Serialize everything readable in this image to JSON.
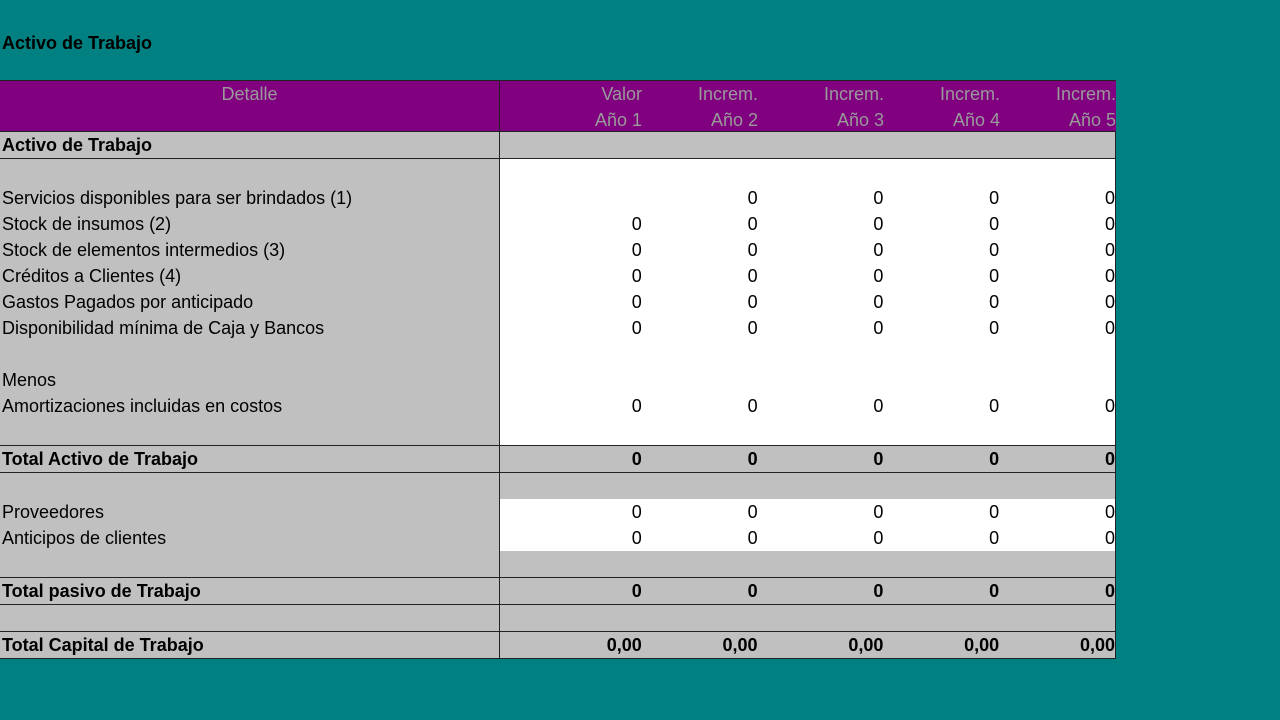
{
  "title": "Activo de Trabajo",
  "header": {
    "detalle": "Detalle",
    "cols": [
      {
        "l1": "Valor",
        "l2": "Año 1"
      },
      {
        "l1": "Increm.",
        "l2": "Año 2"
      },
      {
        "l1": "Increm.",
        "l2": "Año 3"
      },
      {
        "l1": "Increm.",
        "l2": "Año 4"
      },
      {
        "l1": "Increm.",
        "l2": "Año 5"
      }
    ]
  },
  "rows": [
    {
      "label": "Activo de Trabajo",
      "vals": [
        "",
        "",
        "",
        "",
        ""
      ]
    },
    {
      "label": "",
      "vals": [
        "",
        "",
        "",
        "",
        ""
      ]
    },
    {
      "label": "Servicios disponibles para ser brindados (1)",
      "vals": [
        "",
        "0",
        "0",
        "0",
        "0"
      ]
    },
    {
      "label": "Stock de insumos  (2)",
      "vals": [
        "0",
        "0",
        "0",
        "0",
        "0"
      ]
    },
    {
      "label": "Stock de elementos intermedios (3)",
      "vals": [
        "0",
        "0",
        "0",
        "0",
        "0"
      ]
    },
    {
      "label": "Créditos a Clientes (4)",
      "vals": [
        "0",
        "0",
        "0",
        "0",
        "0"
      ]
    },
    {
      "label": "Gastos Pagados por anticipado",
      "vals": [
        "0",
        "0",
        "0",
        "0",
        "0"
      ]
    },
    {
      "label": "Disponibilidad mínima de Caja y Bancos",
      "vals": [
        "0",
        "0",
        "0",
        "0",
        "0"
      ]
    },
    {
      "label": "",
      "vals": [
        "",
        "",
        "",
        "",
        ""
      ]
    },
    {
      "label": "Menos",
      "vals": [
        "",
        "",
        "",
        "",
        ""
      ]
    },
    {
      "label": "Amortizaciones incluidas en costos",
      "vals": [
        "0",
        "0",
        "0",
        "0",
        "0"
      ]
    },
    {
      "label": "",
      "vals": [
        "",
        "",
        "",
        "",
        ""
      ]
    },
    {
      "label": "Total Activo de Trabajo",
      "vals": [
        "0",
        "0",
        "0",
        "0",
        "0"
      ]
    },
    {
      "label": "",
      "vals": [
        "",
        "",
        "",
        "",
        ""
      ]
    },
    {
      "label": "Proveedores",
      "vals": [
        "0",
        "0",
        "0",
        "0",
        "0"
      ]
    },
    {
      "label": "Anticipos de clientes",
      "vals": [
        "0",
        "0",
        "0",
        "0",
        "0"
      ]
    },
    {
      "label": "",
      "vals": [
        "",
        "",
        "",
        "",
        ""
      ]
    },
    {
      "label": "Total pasivo de Trabajo",
      "vals": [
        "0",
        "0",
        "0",
        "0",
        "0"
      ]
    },
    {
      "label": "",
      "vals": [
        "",
        "",
        "",
        "",
        ""
      ]
    },
    {
      "label": "Total Capital de Trabajo",
      "vals": [
        "0,00",
        "0,00",
        "0,00",
        "0,00",
        "0,00"
      ]
    }
  ]
}
